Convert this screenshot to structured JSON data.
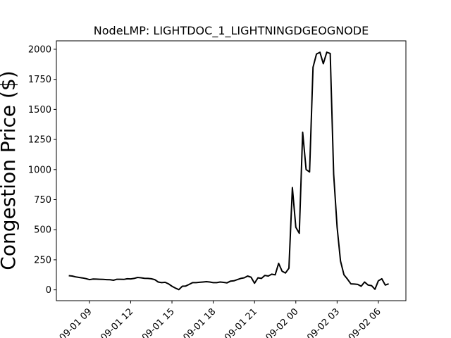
{
  "chart_data": {
    "type": "line",
    "title": "NodeLMP: LIGHTDOC_1_LIGHTNINGDGEOGNODE",
    "xlabel": "",
    "ylabel": "Congestion Price ($)",
    "x_tick_labels": [
      "09-01 09",
      "09-01 12",
      "09-01 15",
      "09-01 18",
      "09-01 21",
      "09-02 00",
      "09-02 03",
      "09-02 06"
    ],
    "x_tick_values": [
      9,
      12,
      15,
      18,
      21,
      24,
      27,
      30
    ],
    "y_tick_labels": [
      "0",
      "250",
      "500",
      "750",
      "1000",
      "1250",
      "1500",
      "1750",
      "2000"
    ],
    "y_tick_values": [
      0,
      250,
      500,
      750,
      1000,
      1250,
      1500,
      1750,
      2000
    ],
    "xlim": [
      6.6,
      32
    ],
    "ylim": [
      -90,
      2070
    ],
    "grid": false,
    "line_color": "#000000",
    "series": [
      {
        "x": [
          7.5,
          7.75,
          8.0,
          8.25,
          8.5,
          8.75,
          9.0,
          9.25,
          9.5,
          9.75,
          10.0,
          10.25,
          10.5,
          10.75,
          11.0,
          11.25,
          11.5,
          11.75,
          12.0,
          12.25,
          12.5,
          12.75,
          13.0,
          13.25,
          13.5,
          13.75,
          14.0,
          14.25,
          14.5,
          14.75,
          15.0,
          15.25,
          15.5,
          15.75,
          16.0,
          16.25,
          16.5,
          16.75,
          17.0,
          17.25,
          17.5,
          17.75,
          18.0,
          18.25,
          18.5,
          18.75,
          19.0,
          19.25,
          19.5,
          19.75,
          20.0,
          20.25,
          20.5,
          20.75,
          21.0,
          21.25,
          21.5,
          21.75,
          22.0,
          22.25,
          22.5,
          22.75,
          23.0,
          23.25,
          23.5,
          23.75,
          24.0,
          24.25,
          24.5,
          24.75,
          25.0,
          25.25,
          25.5,
          25.75,
          26.0,
          26.25,
          26.5,
          26.75,
          27.0,
          27.25,
          27.5,
          27.75,
          28.0,
          28.25,
          28.5,
          28.75,
          29.0,
          29.25,
          29.5,
          29.75,
          30.0,
          30.25,
          30.5,
          30.75
        ],
        "y": [
          118,
          115,
          108,
          103,
          99,
          93,
          85,
          90,
          89,
          88,
          87,
          85,
          84,
          80,
          88,
          88,
          87,
          92,
          91,
          95,
          103,
          100,
          96,
          95,
          92,
          85,
          65,
          60,
          63,
          50,
          30,
          15,
          2,
          30,
          32,
          45,
          60,
          60,
          63,
          65,
          68,
          65,
          60,
          60,
          65,
          62,
          58,
          72,
          75,
          85,
          95,
          100,
          115,
          105,
          55,
          100,
          95,
          120,
          115,
          130,
          125,
          220,
          155,
          140,
          180,
          850,
          520,
          470,
          1310,
          1000,
          980,
          1850,
          1960,
          1975,
          1880,
          1975,
          1965,
          960,
          520,
          240,
          125,
          90,
          50,
          48,
          45,
          30,
          65,
          40,
          35,
          5,
          75,
          92,
          40,
          50
        ]
      }
    ]
  }
}
